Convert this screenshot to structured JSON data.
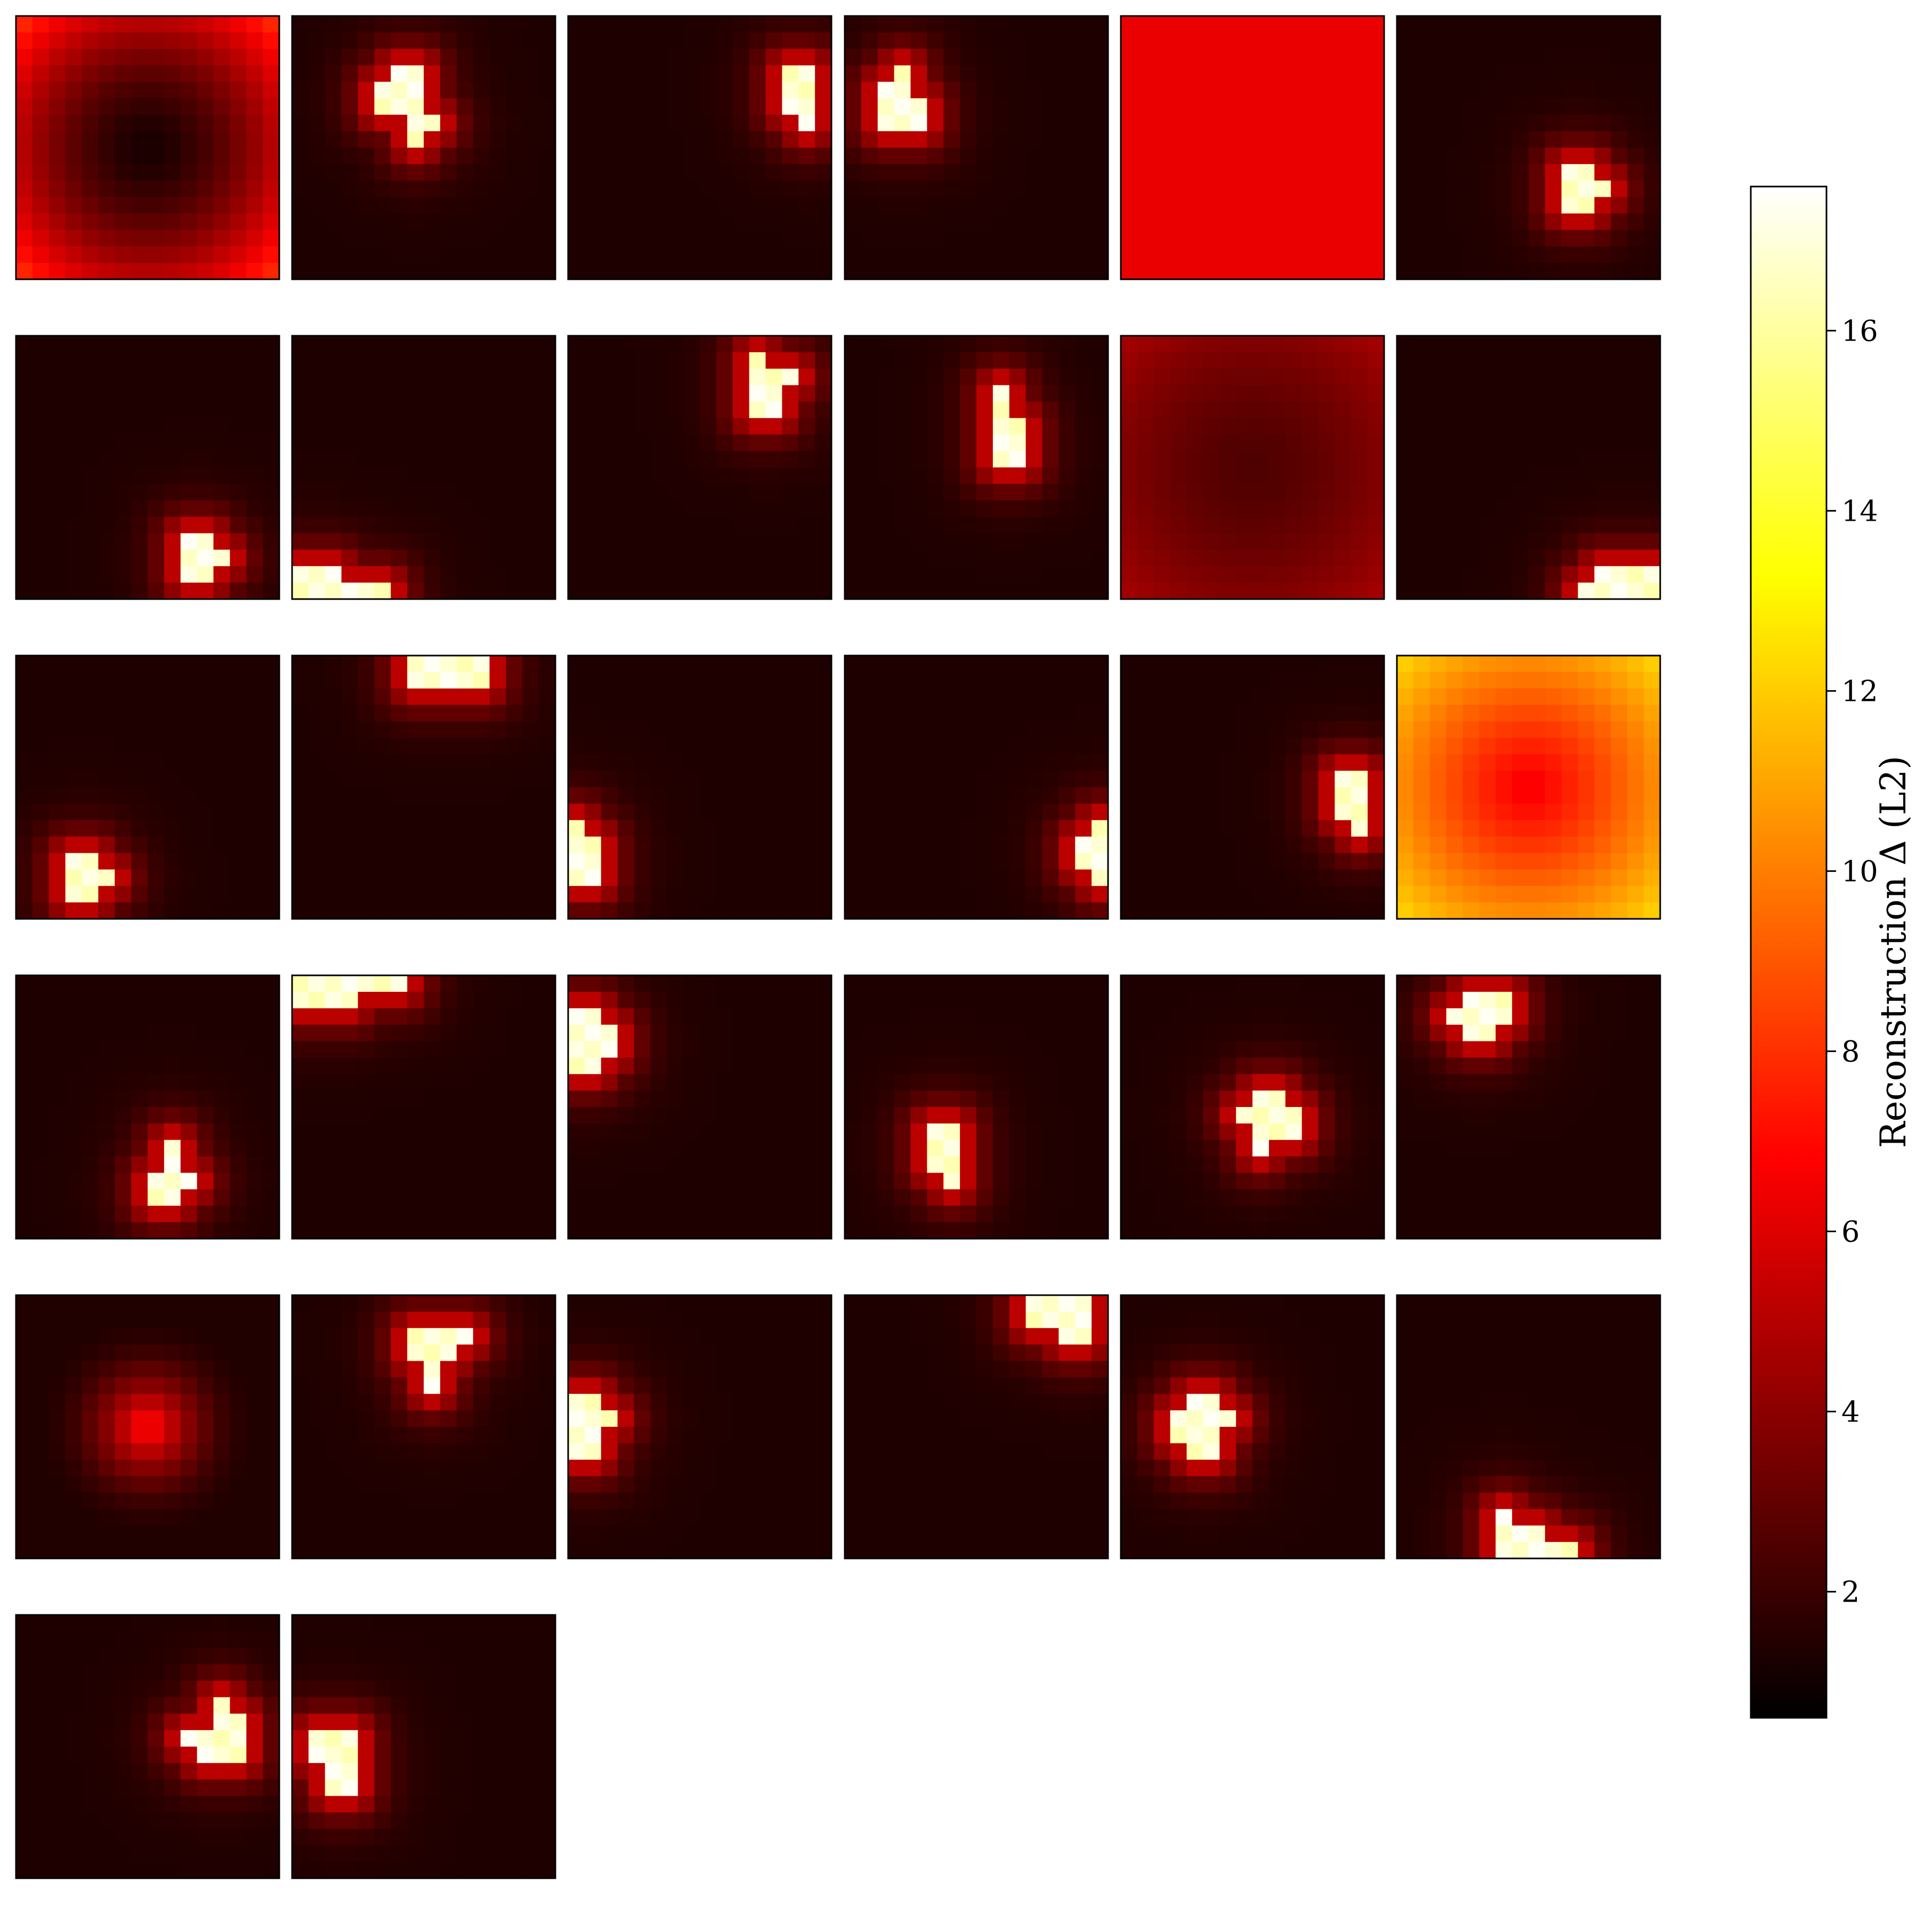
{
  "chart_data": {
    "type": "heatmap",
    "description_panels": "grid of small heatmaps (6 columns), 32 panels, 16x16 cells each",
    "colormap": "hot",
    "colorbar": {
      "label": "Reconstruction Δ (L2)",
      "vmin": 0.6,
      "vmax": 17.6,
      "ticks": [
        2,
        4,
        6,
        8,
        10,
        12,
        14,
        16
      ],
      "tick_labels": [
        "2",
        "4",
        "6",
        "8",
        "10",
        "12",
        "14",
        "16"
      ]
    },
    "grid_size": 16,
    "columns": 6,
    "panels": [
      {
        "type": "ring",
        "base": 1.2,
        "amp": 6.5,
        "r0": 4,
        "pw": 1.6
      },
      {
        "type": "blob",
        "blob": [
          [
            3,
            6
          ],
          [
            3,
            7
          ],
          [
            4,
            5
          ],
          [
            4,
            6
          ],
          [
            4,
            7
          ],
          [
            5,
            5
          ],
          [
            5,
            6
          ],
          [
            5,
            7
          ],
          [
            6,
            7
          ],
          [
            6,
            8
          ],
          [
            7,
            7
          ]
        ]
      },
      {
        "type": "blob",
        "blob": [
          [
            3,
            13
          ],
          [
            3,
            14
          ],
          [
            4,
            13
          ],
          [
            4,
            14
          ],
          [
            5,
            13
          ],
          [
            5,
            14
          ],
          [
            6,
            14
          ]
        ]
      },
      {
        "type": "blob",
        "blob": [
          [
            3,
            3
          ],
          [
            4,
            2
          ],
          [
            4,
            3
          ],
          [
            5,
            2
          ],
          [
            5,
            3
          ],
          [
            5,
            4
          ],
          [
            6,
            2
          ],
          [
            6,
            3
          ],
          [
            6,
            4
          ]
        ]
      },
      {
        "type": "flat",
        "value": 6.3
      },
      {
        "type": "blob",
        "blob": [
          [
            9,
            10
          ],
          [
            9,
            11
          ],
          [
            10,
            10
          ],
          [
            10,
            11
          ],
          [
            10,
            12
          ],
          [
            11,
            10
          ],
          [
            11,
            11
          ]
        ]
      },
      {
        "type": "blob",
        "blob": [
          [
            12,
            10
          ],
          [
            12,
            11
          ],
          [
            13,
            10
          ],
          [
            13,
            11
          ],
          [
            13,
            12
          ],
          [
            14,
            10
          ],
          [
            14,
            11
          ]
        ]
      },
      {
        "type": "blob",
        "blob": [
          [
            14,
            0
          ],
          [
            14,
            1
          ],
          [
            14,
            2
          ],
          [
            15,
            0
          ],
          [
            15,
            1
          ],
          [
            15,
            2
          ],
          [
            15,
            3
          ],
          [
            15,
            4
          ],
          [
            15,
            5
          ]
        ]
      },
      {
        "type": "blob",
        "blob": [
          [
            1,
            11
          ],
          [
            2,
            11
          ],
          [
            2,
            12
          ],
          [
            2,
            13
          ],
          [
            3,
            11
          ],
          [
            3,
            12
          ],
          [
            4,
            11
          ],
          [
            4,
            12
          ]
        ]
      },
      {
        "type": "blob",
        "blob": [
          [
            3,
            9
          ],
          [
            4,
            9
          ],
          [
            5,
            9
          ],
          [
            5,
            10
          ],
          [
            6,
            9
          ],
          [
            6,
            10
          ],
          [
            7,
            9
          ],
          [
            7,
            10
          ]
        ]
      },
      {
        "type": "ring",
        "base": 2.5,
        "amp": 2.0,
        "r0": 2,
        "pw": 1.5
      },
      {
        "type": "blob",
        "blob": [
          [
            14,
            12
          ],
          [
            14,
            13
          ],
          [
            14,
            14
          ],
          [
            14,
            15
          ],
          [
            15,
            11
          ],
          [
            15,
            12
          ],
          [
            15,
            13
          ],
          [
            15,
            14
          ],
          [
            15,
            15
          ]
        ]
      },
      {
        "type": "blob",
        "blob": [
          [
            12,
            3
          ],
          [
            12,
            4
          ],
          [
            13,
            3
          ],
          [
            13,
            4
          ],
          [
            13,
            5
          ],
          [
            14,
            3
          ],
          [
            14,
            4
          ]
        ]
      },
      {
        "type": "blob",
        "blob": [
          [
            0,
            7
          ],
          [
            0,
            8
          ],
          [
            0,
            9
          ],
          [
            0,
            10
          ],
          [
            0,
            11
          ],
          [
            1,
            7
          ],
          [
            1,
            8
          ],
          [
            1,
            9
          ],
          [
            1,
            10
          ],
          [
            1,
            11
          ]
        ]
      },
      {
        "type": "blob",
        "blob": [
          [
            10,
            0
          ],
          [
            11,
            0
          ],
          [
            11,
            1
          ],
          [
            12,
            0
          ],
          [
            12,
            1
          ],
          [
            13,
            0
          ],
          [
            13,
            1
          ]
        ]
      },
      {
        "type": "blob",
        "blob": [
          [
            10,
            15
          ],
          [
            11,
            14
          ],
          [
            11,
            15
          ],
          [
            12,
            14
          ],
          [
            12,
            15
          ],
          [
            13,
            15
          ]
        ]
      },
      {
        "type": "blob",
        "blob": [
          [
            7,
            13
          ],
          [
            7,
            14
          ],
          [
            8,
            13
          ],
          [
            8,
            14
          ],
          [
            9,
            13
          ],
          [
            9,
            14
          ],
          [
            10,
            14
          ]
        ]
      },
      {
        "type": "ring",
        "base": 6.5,
        "amp": 5.5,
        "r0": 2,
        "pw": 1.1
      },
      {
        "type": "blob",
        "blob": [
          [
            10,
            9
          ],
          [
            11,
            9
          ],
          [
            12,
            8
          ],
          [
            12,
            9
          ],
          [
            12,
            10
          ],
          [
            13,
            8
          ],
          [
            13,
            9
          ]
        ]
      },
      {
        "type": "blob",
        "blob": [
          [
            0,
            0
          ],
          [
            0,
            1
          ],
          [
            0,
            2
          ],
          [
            0,
            3
          ],
          [
            0,
            4
          ],
          [
            0,
            5
          ],
          [
            0,
            6
          ],
          [
            1,
            0
          ],
          [
            1,
            1
          ],
          [
            1,
            2
          ],
          [
            1,
            3
          ]
        ]
      },
      {
        "type": "blob",
        "blob": [
          [
            2,
            0
          ],
          [
            2,
            1
          ],
          [
            3,
            0
          ],
          [
            3,
            1
          ],
          [
            3,
            2
          ],
          [
            4,
            0
          ],
          [
            4,
            1
          ],
          [
            4,
            2
          ],
          [
            5,
            0
          ],
          [
            5,
            1
          ]
        ]
      },
      {
        "type": "blob",
        "blob": [
          [
            9,
            5
          ],
          [
            9,
            6
          ],
          [
            10,
            5
          ],
          [
            10,
            6
          ],
          [
            11,
            5
          ],
          [
            11,
            6
          ],
          [
            12,
            6
          ]
        ]
      },
      {
        "type": "blob",
        "blob": [
          [
            7,
            8
          ],
          [
            7,
            9
          ],
          [
            8,
            7
          ],
          [
            8,
            8
          ],
          [
            8,
            9
          ],
          [
            8,
            10
          ],
          [
            9,
            8
          ],
          [
            9,
            9
          ],
          [
            9,
            10
          ],
          [
            10,
            8
          ]
        ]
      },
      {
        "type": "blob",
        "blob": [
          [
            1,
            4
          ],
          [
            1,
            5
          ],
          [
            1,
            6
          ],
          [
            2,
            3
          ],
          [
            2,
            4
          ],
          [
            2,
            5
          ],
          [
            2,
            6
          ],
          [
            3,
            4
          ],
          [
            3,
            5
          ]
        ]
      },
      {
        "type": "center",
        "peak": 7.6,
        "low": 1.4,
        "r": 6.8
      },
      {
        "type": "blob",
        "blob": [
          [
            2,
            7
          ],
          [
            2,
            8
          ],
          [
            2,
            9
          ],
          [
            2,
            10
          ],
          [
            3,
            7
          ],
          [
            3,
            8
          ],
          [
            3,
            9
          ],
          [
            4,
            8
          ],
          [
            5,
            8
          ]
        ]
      },
      {
        "type": "blob",
        "blob": [
          [
            6,
            0
          ],
          [
            6,
            1
          ],
          [
            7,
            0
          ],
          [
            7,
            1
          ],
          [
            7,
            2
          ],
          [
            8,
            0
          ],
          [
            8,
            1
          ],
          [
            9,
            0
          ],
          [
            9,
            1
          ]
        ]
      },
      {
        "type": "blob",
        "blob": [
          [
            0,
            11
          ],
          [
            0,
            12
          ],
          [
            0,
            13
          ],
          [
            0,
            14
          ],
          [
            1,
            11
          ],
          [
            1,
            12
          ],
          [
            1,
            13
          ],
          [
            1,
            14
          ],
          [
            2,
            13
          ],
          [
            2,
            14
          ]
        ]
      },
      {
        "type": "blob",
        "blob": [
          [
            6,
            4
          ],
          [
            6,
            5
          ],
          [
            7,
            3
          ],
          [
            7,
            4
          ],
          [
            7,
            5
          ],
          [
            7,
            6
          ],
          [
            8,
            3
          ],
          [
            8,
            4
          ],
          [
            8,
            5
          ],
          [
            9,
            4
          ],
          [
            9,
            5
          ]
        ]
      },
      {
        "type": "blob",
        "blob": [
          [
            13,
            6
          ],
          [
            14,
            6
          ],
          [
            14,
            7
          ],
          [
            14,
            8
          ],
          [
            15,
            6
          ],
          [
            15,
            7
          ],
          [
            15,
            8
          ],
          [
            15,
            9
          ],
          [
            15,
            10
          ]
        ]
      },
      {
        "type": "blob",
        "blob": [
          [
            5,
            12
          ],
          [
            6,
            12
          ],
          [
            6,
            13
          ],
          [
            7,
            10
          ],
          [
            7,
            11
          ],
          [
            7,
            12
          ],
          [
            7,
            13
          ],
          [
            8,
            11
          ],
          [
            8,
            12
          ],
          [
            8,
            13
          ]
        ]
      },
      {
        "type": "blob",
        "blob": [
          [
            7,
            1
          ],
          [
            7,
            2
          ],
          [
            7,
            3
          ],
          [
            8,
            1
          ],
          [
            8,
            2
          ],
          [
            8,
            3
          ],
          [
            9,
            2
          ],
          [
            9,
            3
          ],
          [
            10,
            2
          ],
          [
            10,
            3
          ]
        ]
      }
    ]
  }
}
